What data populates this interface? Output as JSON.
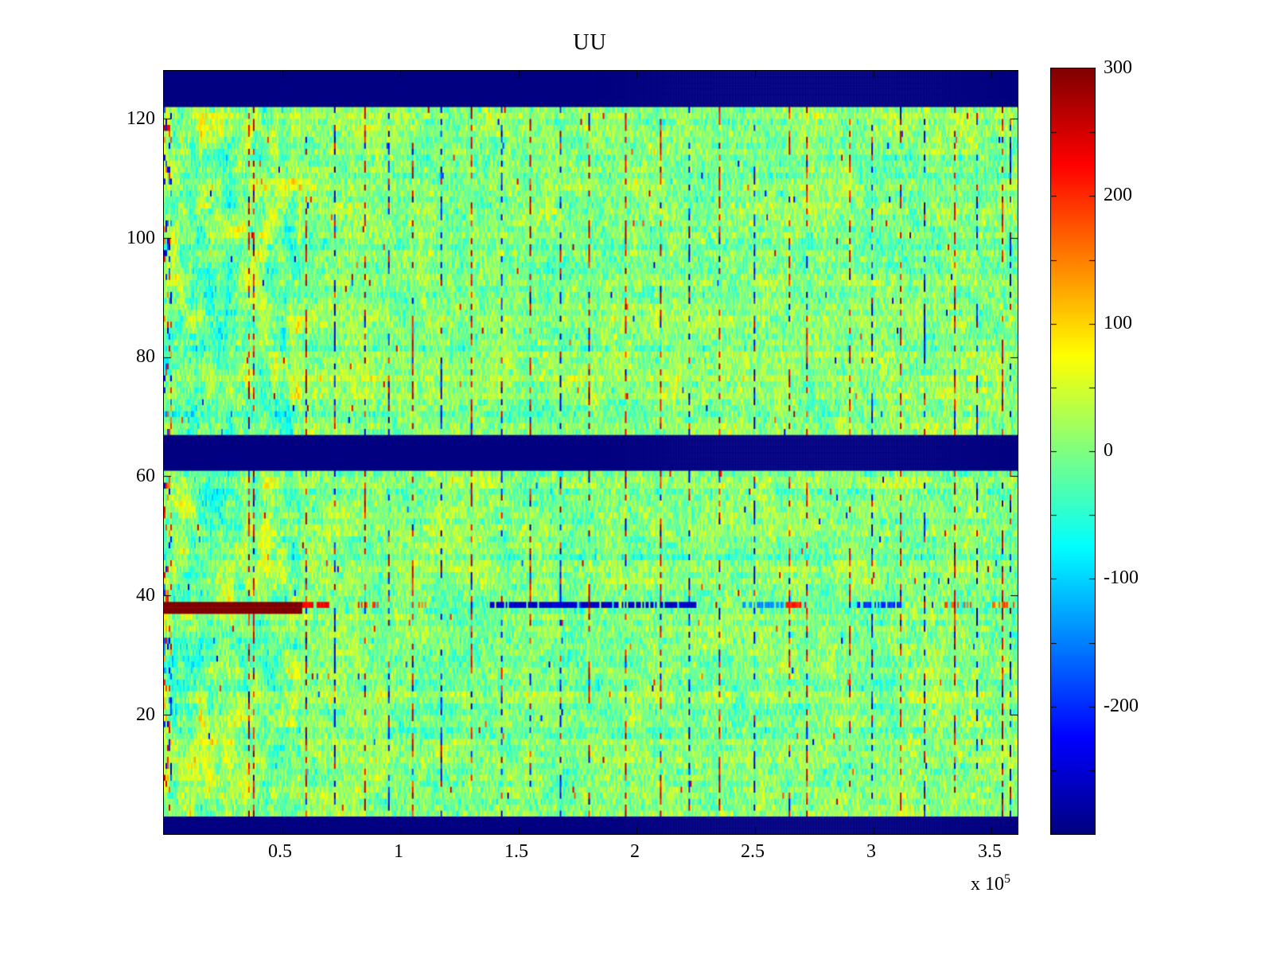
{
  "chart_data": {
    "type": "heatmap",
    "title": "UU",
    "xlabel": "",
    "ylabel": "",
    "x_range": [
      0,
      361000
    ],
    "x_tick_values": [
      50000,
      100000,
      150000,
      200000,
      250000,
      300000,
      350000
    ],
    "x_tick_labels": [
      "0.5",
      "1",
      "1.5",
      "2",
      "2.5",
      "3",
      "3.5"
    ],
    "x_scale_prefix": "x 10",
    "x_scale_exponent": "5",
    "y_range": [
      0,
      128
    ],
    "y_tick_values": [
      20,
      40,
      60,
      80,
      100,
      120
    ],
    "y_tick_labels": [
      "20",
      "40",
      "60",
      "80",
      "100",
      "120"
    ],
    "colormap": "jet",
    "grid": false,
    "legend": "colorbar-right",
    "colorbar": {
      "min": -300,
      "max": 300,
      "tick_values": [
        300,
        200,
        100,
        0,
        -100,
        -200
      ],
      "tick_labels": [
        "300",
        "200",
        "100",
        "0",
        "-100",
        "-200"
      ]
    },
    "description": "MATLAB-style imagesc heatmap titled UU. Noisy near-zero (light green) field with sparse saturated red/blue vertical dashed streak columns. Solid dark-blue (minimum value) horizontal bands at rows 0-2, 61-66 and 122-127. A saturated dark-red (maximum value) horizontal streak at row ~38 from x=0 to ~0.58e5, continuing as red dashes, then a dark-blue dashed segment on the same row from ~1.38e5 to ~2.25e5 and further alternating blue/orange dashes to the right. Left fifth of the plot (x < ~0.55e5) shows stronger blotchy cyan/yellow structure.",
    "render": {
      "seed": 1337,
      "n_rows": 128,
      "n_cols": 537,
      "x_axis_max": 361000,
      "background_mean": 5,
      "noise_std": 30,
      "blob_gain": 26,
      "row_coherence": 10,
      "speckle_prob": 0.003,
      "left_block_frac": 0.16,
      "left_block_gain": 60,
      "edge_speckle_cols": 5,
      "solid_bands": [
        {
          "rows": [
            0,
            2
          ],
          "value": -300
        },
        {
          "rows": [
            61,
            66
          ],
          "value": -300
        },
        {
          "rows": [
            122,
            127
          ],
          "value": -300
        }
      ],
      "streak_density": 0.5,
      "vertical_streaks": [
        {
          "x": 35500,
          "polarity": "red"
        },
        {
          "x": 37500,
          "polarity": "red"
        },
        {
          "x": 60000,
          "polarity": "red"
        },
        {
          "x": 72000,
          "polarity": "blue"
        },
        {
          "x": 85000,
          "polarity": "red"
        },
        {
          "x": 95000,
          "polarity": "blue"
        },
        {
          "x": 105000,
          "polarity": "red"
        },
        {
          "x": 117000,
          "polarity": "blue"
        },
        {
          "x": 130000,
          "polarity": "red"
        },
        {
          "x": 143000,
          "polarity": "blue"
        },
        {
          "x": 155000,
          "polarity": "red"
        },
        {
          "x": 168000,
          "polarity": "blue"
        },
        {
          "x": 180000,
          "polarity": "red"
        },
        {
          "x": 195000,
          "polarity": "red"
        },
        {
          "x": 210000,
          "polarity": "red"
        },
        {
          "x": 222000,
          "polarity": "blue"
        },
        {
          "x": 235000,
          "polarity": "red"
        },
        {
          "x": 250000,
          "polarity": "blue"
        },
        {
          "x": 265000,
          "polarity": "red"
        },
        {
          "x": 272000,
          "polarity": "red"
        },
        {
          "x": 290000,
          "polarity": "red"
        },
        {
          "x": 300000,
          "polarity": "blue"
        },
        {
          "x": 312000,
          "polarity": "red"
        },
        {
          "x": 322000,
          "polarity": "blue"
        },
        {
          "x": 335000,
          "polarity": "red"
        },
        {
          "x": 344000,
          "polarity": "blue"
        },
        {
          "x": 355000,
          "polarity": "red"
        },
        {
          "x": 358000,
          "polarity": "blue"
        }
      ],
      "row_feature": {
        "row": 38,
        "segments": [
          {
            "x": [
              0,
              58000
            ],
            "value": 300,
            "density": 1.0
          },
          {
            "x": [
              58000,
              70000
            ],
            "value": 230,
            "density": 0.8
          },
          {
            "x": [
              82000,
              92000
            ],
            "value": 200,
            "density": 0.5
          },
          {
            "x": [
              104000,
              112000
            ],
            "value": 150,
            "density": 0.4
          },
          {
            "x": [
              138000,
              225000
            ],
            "value": -260,
            "density": 0.85
          },
          {
            "x": [
              245000,
              262000
            ],
            "value": -140,
            "density": 0.7
          },
          {
            "x": [
              263000,
              272000
            ],
            "value": 210,
            "density": 0.8
          },
          {
            "x": [
              292000,
              312000
            ],
            "value": -200,
            "density": 0.7
          },
          {
            "x": [
              330000,
              342000
            ],
            "value": 170,
            "density": 0.5
          },
          {
            "x": [
              350000,
              361000
            ],
            "value": 180,
            "density": 0.5
          }
        ]
      }
    }
  }
}
